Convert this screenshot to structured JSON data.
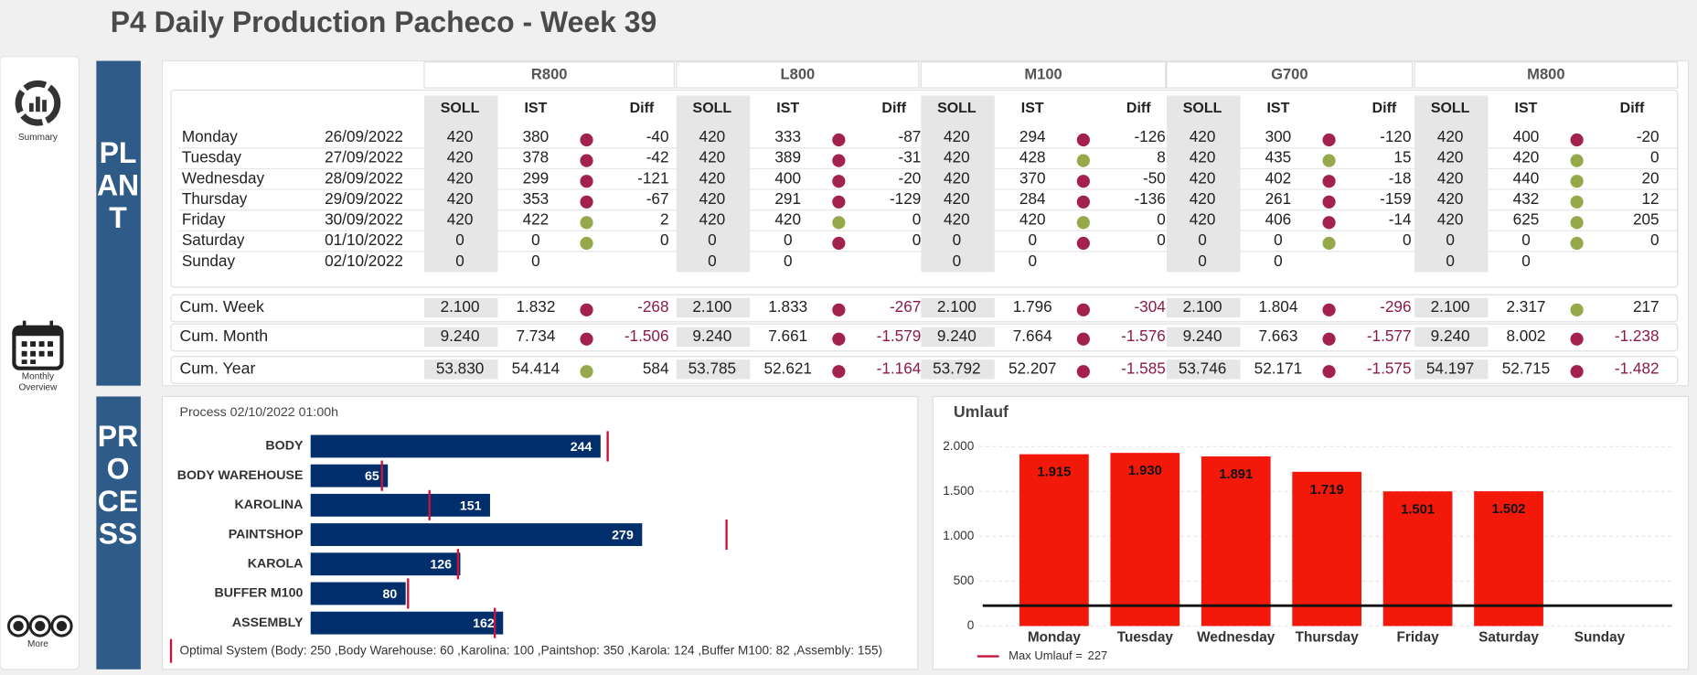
{
  "header": {
    "title": "P4 Daily Production Pacheco - Week 39"
  },
  "nav": [
    "Summary",
    "Monthly Overview",
    "More"
  ],
  "sections": [
    "PLANT",
    "PROCESS"
  ],
  "plant_table": {
    "models": [
      "R800",
      "L800",
      "M100",
      "G700",
      "M800"
    ],
    "columns": [
      "SOLL",
      "IST",
      "Diff"
    ],
    "days": [
      {
        "day": "Monday",
        "date": "26/09/2022",
        "cells": [
          [
            "420",
            "380",
            "#a3214f",
            "-40"
          ],
          [
            "420",
            "333",
            "#a3214f",
            "-87"
          ],
          [
            "420",
            "294",
            "#a3214f",
            "-126"
          ],
          [
            "420",
            "300",
            "#a3214f",
            "-120"
          ],
          [
            "420",
            "400",
            "#a3214f",
            "-20"
          ]
        ]
      },
      {
        "day": "Tuesday",
        "date": "27/09/2022",
        "cells": [
          [
            "420",
            "378",
            "#a3214f",
            "-42"
          ],
          [
            "420",
            "389",
            "#a3214f",
            "-31"
          ],
          [
            "420",
            "428",
            "#95a94a",
            "8"
          ],
          [
            "420",
            "435",
            "#95a94a",
            "15"
          ],
          [
            "420",
            "420",
            "#95a94a",
            "0"
          ]
        ]
      },
      {
        "day": "Wednesday",
        "date": "28/09/2022",
        "cells": [
          [
            "420",
            "299",
            "#a3214f",
            "-121"
          ],
          [
            "420",
            "400",
            "#a3214f",
            "-20"
          ],
          [
            "420",
            "370",
            "#a3214f",
            "-50"
          ],
          [
            "420",
            "402",
            "#a3214f",
            "-18"
          ],
          [
            "420",
            "440",
            "#95a94a",
            "20"
          ]
        ]
      },
      {
        "day": "Thursday",
        "date": "29/09/2022",
        "cells": [
          [
            "420",
            "353",
            "#a3214f",
            "-67"
          ],
          [
            "420",
            "291",
            "#a3214f",
            "-129"
          ],
          [
            "420",
            "284",
            "#a3214f",
            "-136"
          ],
          [
            "420",
            "261",
            "#a3214f",
            "-159"
          ],
          [
            "420",
            "432",
            "#95a94a",
            "12"
          ]
        ]
      },
      {
        "day": "Friday",
        "date": "30/09/2022",
        "cells": [
          [
            "420",
            "422",
            "#95a94a",
            "2"
          ],
          [
            "420",
            "420",
            "#95a94a",
            "0"
          ],
          [
            "420",
            "420",
            "#95a94a",
            "0"
          ],
          [
            "420",
            "406",
            "#a3214f",
            "-14"
          ],
          [
            "420",
            "625",
            "#95a94a",
            "205"
          ]
        ]
      },
      {
        "day": "Saturday",
        "date": "01/10/2022",
        "cells": [
          [
            "0",
            "0",
            "#95a94a",
            "0"
          ],
          [
            "0",
            "0",
            "#a3214f",
            "0"
          ],
          [
            "0",
            "0",
            "#a3214f",
            "0"
          ],
          [
            "0",
            "0",
            "#95a94a",
            "0"
          ],
          [
            "0",
            "0",
            "#95a94a",
            "0"
          ]
        ]
      },
      {
        "day": "Sunday",
        "date": "02/10/2022",
        "cells": [
          [
            "0",
            "0"
          ],
          [
            "0",
            "0"
          ],
          [
            "0",
            "0"
          ],
          [
            "0",
            "0"
          ],
          [
            "0",
            "0"
          ]
        ]
      }
    ],
    "cumulative": [
      {
        "label": "Cum. Week",
        "cells": [
          [
            "2.100",
            "1.832",
            "#a3214f",
            "-268"
          ],
          [
            "2.100",
            "1.833",
            "#a3214f",
            "-267"
          ],
          [
            "2.100",
            "1.796",
            "#a3214f",
            "-304"
          ],
          [
            "2.100",
            "1.804",
            "#a3214f",
            "-296"
          ],
          [
            "2.100",
            "2.317",
            "#95a94a",
            "217"
          ]
        ]
      },
      {
        "label": "Cum. Month",
        "cells": [
          [
            "9.240",
            "7.734",
            "#a3214f",
            "-1.506"
          ],
          [
            "9.240",
            "7.661",
            "#a3214f",
            "-1.579"
          ],
          [
            "9.240",
            "7.664",
            "#a3214f",
            "-1.576"
          ],
          [
            "9.240",
            "7.663",
            "#a3214f",
            "-1.577"
          ],
          [
            "9.240",
            "8.002",
            "#a3214f",
            "-1.238"
          ]
        ]
      },
      {
        "label": "Cum. Year",
        "cells": [
          [
            "53.830",
            "54.414",
            "#95a94a",
            "584"
          ],
          [
            "53.785",
            "52.621",
            "#a3214f",
            "-1.164"
          ],
          [
            "53.792",
            "52.207",
            "#a3214f",
            "-1.585"
          ],
          [
            "53.746",
            "52.171",
            "#a3214f",
            "-1.575"
          ],
          [
            "54.197",
            "52.715",
            "#a3214f",
            "-1.482"
          ]
        ]
      }
    ]
  },
  "chart_data": [
    {
      "type": "bar",
      "orientation": "horizontal",
      "subtitle": "Process 02/10/2022 01:00h",
      "categories": [
        "BODY",
        "BODY WAREHOUSE",
        "KAROLINA",
        "PAINTSHOP",
        "KAROLA",
        "BUFFER M100",
        "ASSEMBLY"
      ],
      "xlim": [
        0,
        500
      ],
      "series": [
        {
          "color": "#002f6c",
          "values": [
            244,
            65,
            151,
            279,
            126,
            80,
            162
          ]
        },
        {
          "name": "Optimal System (Body: 250 ,Body Warehouse: 60 ,Karolina: 100 ,Paintshop: 350 ,Karola: 124 ,Buffer M100: 82 ,Assembly: 155)",
          "color": "#c8143c",
          "marker": "line",
          "values": [
            250,
            60,
            100,
            350,
            124,
            82,
            155
          ]
        }
      ]
    },
    {
      "type": "bar",
      "orientation": "vertical",
      "title": "Umlauf",
      "categories": [
        "Monday",
        "Tuesday",
        "Wednesday",
        "Thursday",
        "Friday",
        "Saturday",
        "Sunday"
      ],
      "values": [
        1915,
        1930,
        1891,
        1719,
        1501,
        1502,
        null
      ],
      "value_labels": [
        "1.915",
        "1.930",
        "1.891",
        "1.719",
        "1.501",
        "1.502",
        null
      ],
      "color": "#f2190a",
      "ylim": [
        0,
        2100
      ],
      "yticks": [
        0,
        500,
        {
          "value": 1000,
          "label": "1.000"
        },
        {
          "value": 1500,
          "label": "1.500"
        },
        {
          "value": 2000,
          "label": "2.000"
        }
      ],
      "grid": true,
      "reference_line": {
        "label": "Max Umlauf =",
        "value": 227,
        "color": "#111111",
        "legend_color": "#c8143c"
      }
    }
  ]
}
